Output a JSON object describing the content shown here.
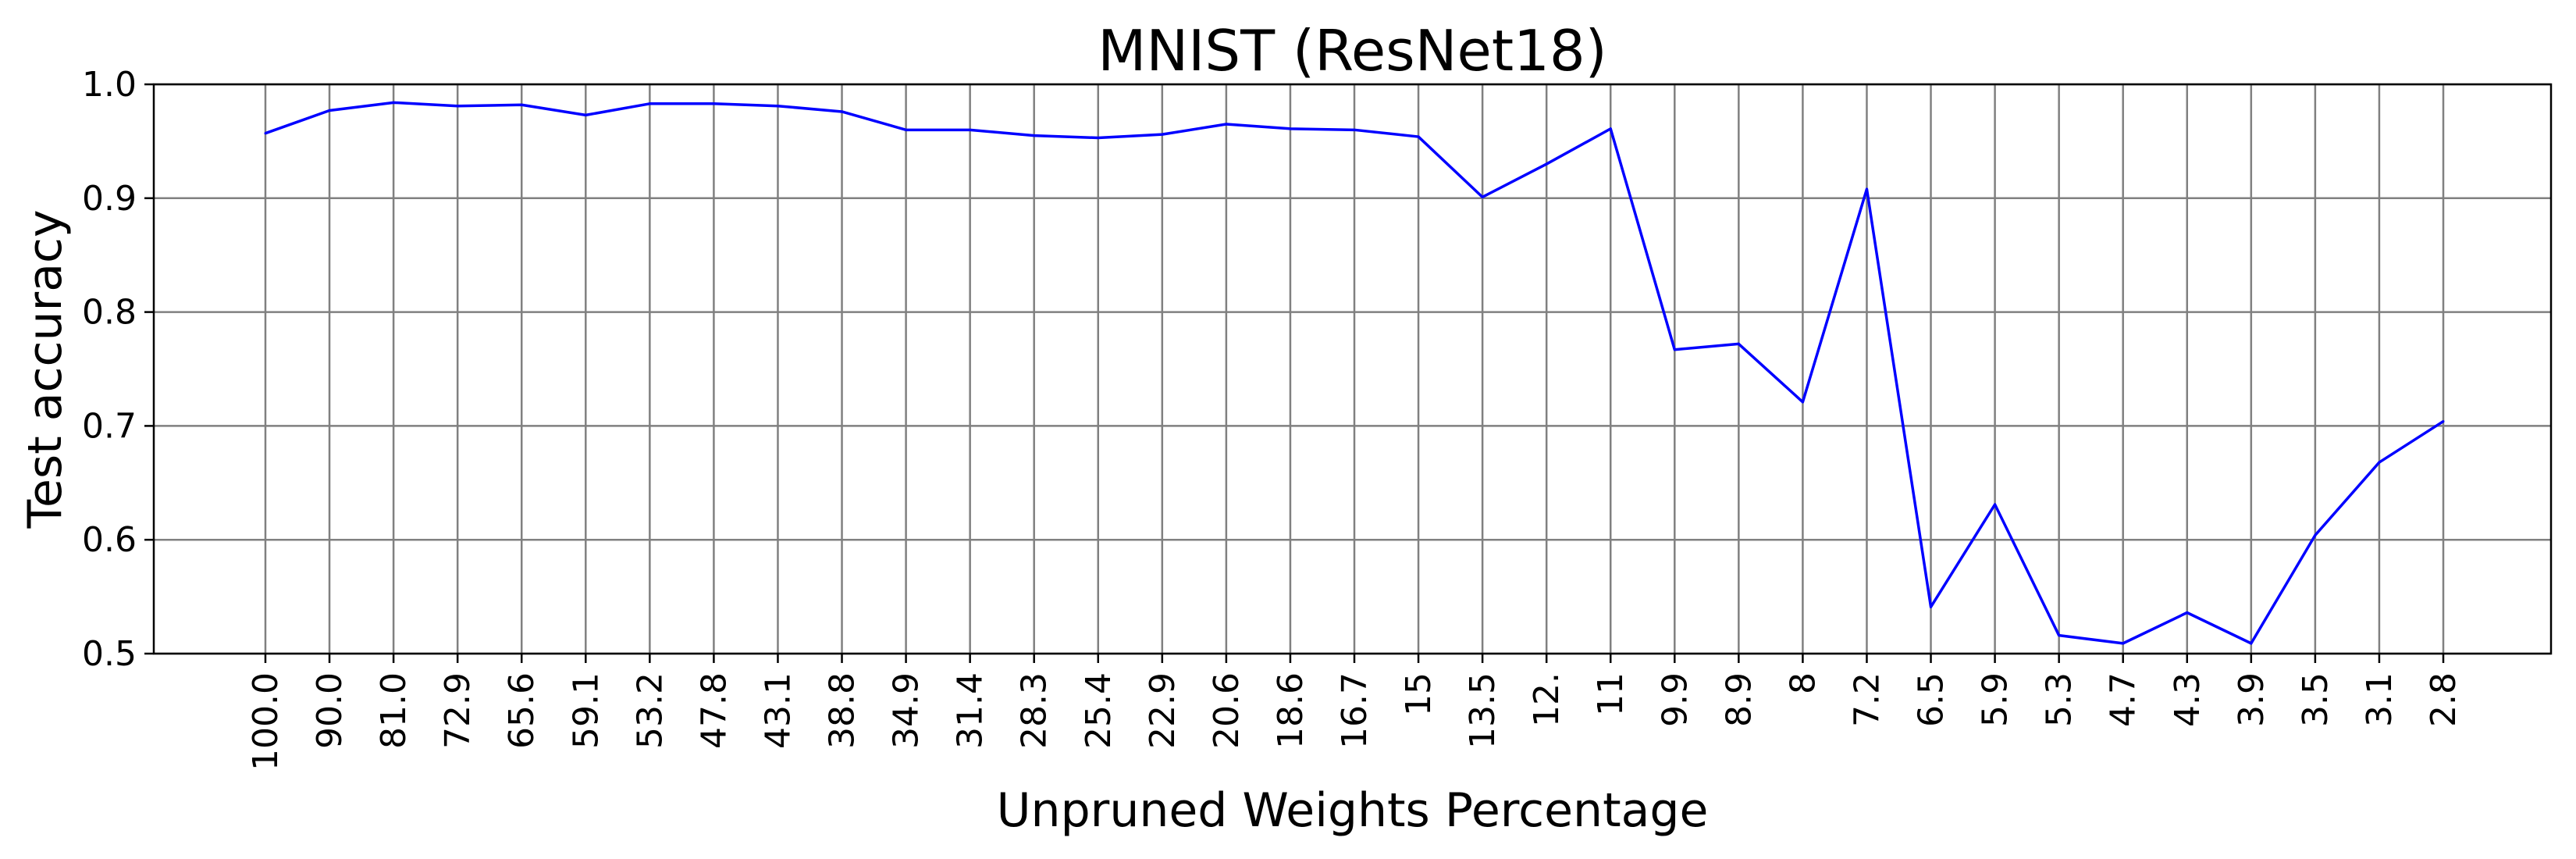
{
  "chart_data": {
    "type": "line",
    "title": "MNIST (ResNet18)",
    "xlabel": "Unpruned Weights Percentage",
    "ylabel": "Test accuracy",
    "categories": [
      "100.0",
      "90.0",
      "81.0",
      "72.9",
      "65.6",
      "59.1",
      "53.2",
      "47.8",
      "43.1",
      "38.8",
      "34.9",
      "31.4",
      "28.3",
      "25.4",
      "22.9",
      "20.6",
      "18.6",
      "16.7",
      "15",
      "13.5",
      "12.",
      "11",
      "9.9",
      "8.9",
      "8",
      "7.2",
      "6.5",
      "5.9",
      "5.3",
      "4.7",
      "4.3",
      "3.9",
      "3.5",
      "3.1",
      "2.8"
    ],
    "yticks": [
      "0.5",
      "0.6",
      "0.7",
      "0.8",
      "0.9",
      "1.0"
    ],
    "ylim": [
      0.5,
      1.0
    ],
    "grid": true,
    "series": [
      {
        "color": "#0000ff",
        "values": [
          0.957,
          0.977,
          0.984,
          0.981,
          0.982,
          0.973,
          0.983,
          0.983,
          0.981,
          0.976,
          0.96,
          0.96,
          0.955,
          0.953,
          0.956,
          0.965,
          0.961,
          0.96,
          0.954,
          0.901,
          0.93,
          0.961,
          0.767,
          0.772,
          0.721,
          0.908,
          0.541,
          0.631,
          0.516,
          0.509,
          0.536,
          0.509,
          0.604,
          0.668,
          0.704
        ]
      }
    ]
  }
}
